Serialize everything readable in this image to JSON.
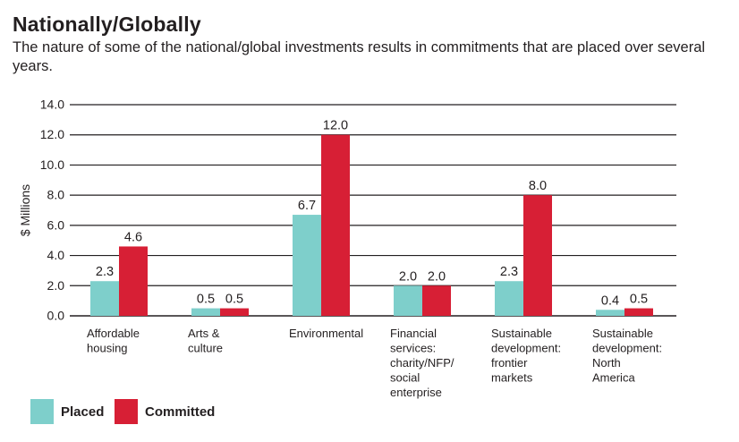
{
  "header": {
    "title": "Nationally/Globally",
    "subtitle": "The nature of some of the national/global investments results in commitments that are placed over several years."
  },
  "colors": {
    "placed": "#7ecfcb",
    "committed": "#d71f35",
    "grid": "#231f20"
  },
  "chart_data": {
    "type": "bar",
    "title": "Nationally/Globally",
    "ylabel": "$ Millions",
    "xlabel": "",
    "ylim": [
      0,
      14
    ],
    "yticks": [
      "0.0",
      "2.0",
      "4.0",
      "6.0",
      "8.0",
      "10.0",
      "12.0",
      "14.0"
    ],
    "grid": true,
    "legend_placement": "bottom-left",
    "categories": [
      [
        "Affordable",
        "housing"
      ],
      [
        "Arts &",
        "culture"
      ],
      [
        "Environmental"
      ],
      [
        "Financial",
        "services:",
        "charity/NFP/",
        "social",
        "enterprise"
      ],
      [
        "Sustainable",
        "development:",
        "frontier",
        "markets"
      ],
      [
        "Sustainable",
        "development:",
        "North",
        "America"
      ]
    ],
    "series": [
      {
        "name": "Placed",
        "values": [
          2.3,
          0.5,
          6.7,
          2.0,
          2.3,
          0.4
        ],
        "labels": [
          "2.3",
          "0.5",
          "6.7",
          "2.0",
          "2.3",
          "0.4"
        ]
      },
      {
        "name": "Committed",
        "values": [
          4.6,
          0.5,
          12.0,
          2.0,
          8.0,
          0.5
        ],
        "labels": [
          "4.6",
          "0.5",
          "12.0",
          "2.0",
          "8.0",
          "0.5"
        ]
      }
    ]
  },
  "legend": {
    "placed_label": "Placed",
    "committed_label": "Committed"
  }
}
